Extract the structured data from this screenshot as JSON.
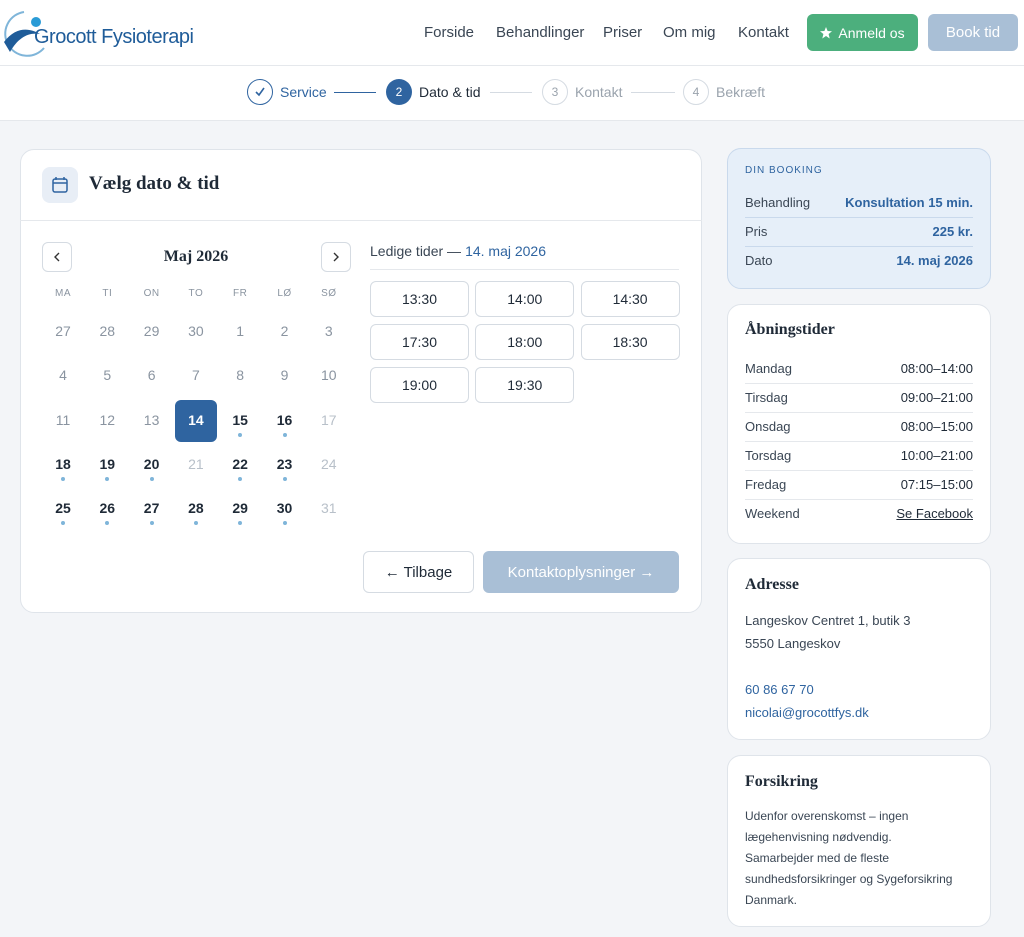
{
  "header": {
    "logo": "Grocott Fysioterapi",
    "nav": [
      "Forside",
      "Behandlinger",
      "Priser",
      "Om mig",
      "Kontakt"
    ],
    "review_button": "Anmeld os",
    "book_button": "Book tid"
  },
  "steps": [
    {
      "label": "Service",
      "status": "done"
    },
    {
      "number": "2",
      "label": "Dato & tid",
      "status": "active"
    },
    {
      "number": "3",
      "label": "Kontakt",
      "status": "todo"
    },
    {
      "number": "4",
      "label": "Bekræft",
      "status": "todo"
    }
  ],
  "booking_panel": {
    "title": "Vælg dato & tid",
    "month": "Maj 2026",
    "weekdays": [
      "MA",
      "TI",
      "ON",
      "TO",
      "FR",
      "LØ",
      "SØ"
    ],
    "days": [
      {
        "label": "27",
        "state": "past"
      },
      {
        "label": "28",
        "state": "past"
      },
      {
        "label": "29",
        "state": "past"
      },
      {
        "label": "30",
        "state": "past"
      },
      {
        "label": "1",
        "state": "past"
      },
      {
        "label": "2",
        "state": "past"
      },
      {
        "label": "3",
        "state": "past"
      },
      {
        "label": "4",
        "state": "past"
      },
      {
        "label": "5",
        "state": "past"
      },
      {
        "label": "6",
        "state": "past"
      },
      {
        "label": "7",
        "state": "past"
      },
      {
        "label": "8",
        "state": "past"
      },
      {
        "label": "9",
        "state": "past"
      },
      {
        "label": "10",
        "state": "past"
      },
      {
        "label": "11",
        "state": "past"
      },
      {
        "label": "12",
        "state": "past"
      },
      {
        "label": "13",
        "state": "past"
      },
      {
        "label": "14",
        "state": "selected"
      },
      {
        "label": "15",
        "state": "available"
      },
      {
        "label": "16",
        "state": "available"
      },
      {
        "label": "17",
        "state": "closed"
      },
      {
        "label": "18",
        "state": "available"
      },
      {
        "label": "19",
        "state": "available"
      },
      {
        "label": "20",
        "state": "available"
      },
      {
        "label": "21",
        "state": "closed"
      },
      {
        "label": "22",
        "state": "available"
      },
      {
        "label": "23",
        "state": "available"
      },
      {
        "label": "24",
        "state": "closed"
      },
      {
        "label": "25",
        "state": "available"
      },
      {
        "label": "26",
        "state": "available"
      },
      {
        "label": "27",
        "state": "available"
      },
      {
        "label": "28",
        "state": "available"
      },
      {
        "label": "29",
        "state": "available"
      },
      {
        "label": "30",
        "state": "available"
      },
      {
        "label": "31",
        "state": "closed"
      }
    ],
    "times_heading": "Ledige tider —",
    "times_date": "14. maj 2026",
    "times": [
      "13:30",
      "14:00",
      "14:30",
      "17:30",
      "18:00",
      "18:30",
      "19:00",
      "19:30"
    ],
    "back_button": "← Tilbage",
    "next_button": "Kontaktoplysninger →"
  },
  "summary": {
    "heading": "DIN BOOKING",
    "rows": [
      [
        "Behandling",
        "Konsultation 15 min."
      ],
      [
        "Pris",
        "225 kr."
      ],
      [
        "Dato",
        "14. maj 2026"
      ]
    ]
  },
  "hours": {
    "title": "Åbningstider",
    "rows": [
      [
        "Mandag",
        "08:00–14:00"
      ],
      [
        "Tirsdag",
        "09:00–21:00"
      ],
      [
        "Onsdag",
        "08:00–15:00"
      ],
      [
        "Torsdag",
        "10:00–21:00"
      ],
      [
        "Fredag",
        "07:15–15:00"
      ],
      [
        "Weekend",
        "Se Facebook"
      ]
    ]
  },
  "address": {
    "title": "Adresse",
    "lines": [
      "Langeskov Centret 1, butik 3",
      "5550 Langeskov"
    ],
    "phone": "60 86 67 70",
    "email": "nicolai@grocottfys.dk"
  },
  "insurance": {
    "title": "Forsikring",
    "lines": [
      "Udenfor overenskomst – ingen",
      "lægehenvisning nødvendig.",
      "Samarbejder med de fleste",
      "sundhedsforsikringer og Sygeforsikring",
      "Danmark."
    ]
  }
}
